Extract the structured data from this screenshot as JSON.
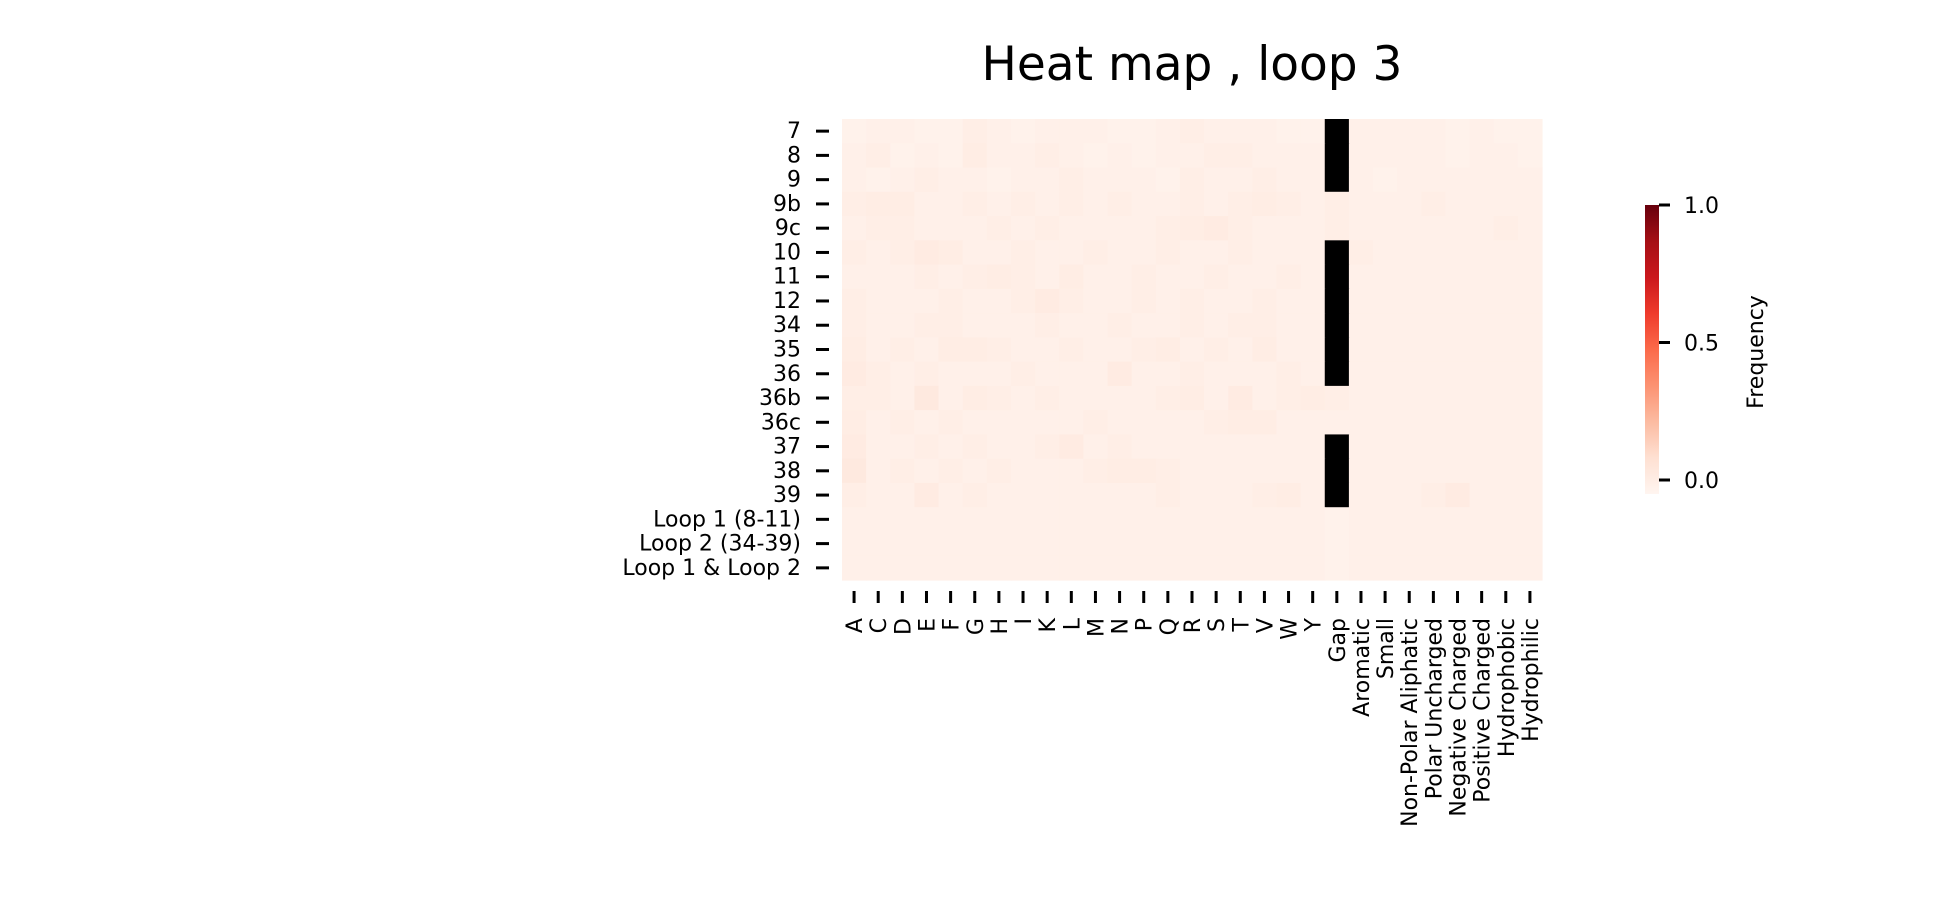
{
  "chart_data": {
    "type": "heatmap",
    "title": "Heat map , loop 3",
    "xlabel": "",
    "ylabel": "",
    "columns": [
      "A",
      "C",
      "D",
      "E",
      "F",
      "G",
      "H",
      "I",
      "K",
      "L",
      "M",
      "N",
      "P",
      "Q",
      "R",
      "S",
      "T",
      "V",
      "W",
      "Y",
      "Gap",
      "Aromatic",
      "Small",
      "Non-Polar Aliphatic",
      "Polar Uncharged",
      "Negative Charged",
      "Positive Charged",
      "Hydrophobic",
      "Hydrophilic"
    ],
    "rows": [
      "7",
      "8",
      "9",
      "9b",
      "9c",
      "10",
      "11",
      "12",
      "34",
      "35",
      "36",
      "36b",
      "36c",
      "37",
      "38",
      "39",
      "Loop 1 (8-11)",
      "Loop 2 (34-39)",
      "Loop 1 & Loop 2"
    ],
    "values": [
      [
        0.02,
        0.03,
        0.03,
        0.02,
        0.02,
        0.04,
        0.03,
        0.02,
        0.03,
        0.03,
        0.03,
        0.02,
        0.02,
        0.03,
        0.04,
        0.03,
        0.03,
        0.03,
        0.02,
        0.02,
        null,
        0.03,
        0.03,
        0.03,
        0.03,
        0.02,
        0.03,
        0.02,
        0.02
      ],
      [
        0.03,
        0.04,
        0.02,
        0.03,
        0.02,
        0.05,
        0.03,
        0.03,
        0.04,
        0.03,
        0.02,
        0.03,
        0.02,
        0.03,
        0.03,
        0.04,
        0.04,
        0.03,
        0.03,
        0.03,
        null,
        0.03,
        0.03,
        0.03,
        0.03,
        0.02,
        0.03,
        0.03,
        0.02
      ],
      [
        0.03,
        0.02,
        0.03,
        0.04,
        0.03,
        0.03,
        0.02,
        0.03,
        0.03,
        0.04,
        0.03,
        0.03,
        0.03,
        0.02,
        0.04,
        0.03,
        0.03,
        0.04,
        0.03,
        0.03,
        null,
        0.03,
        0.02,
        0.03,
        0.03,
        0.03,
        0.03,
        0.03,
        0.03
      ],
      [
        0.04,
        0.05,
        0.05,
        0.03,
        0.03,
        0.04,
        0.03,
        0.04,
        0.03,
        0.04,
        0.03,
        0.04,
        0.03,
        0.03,
        0.04,
        0.03,
        0.04,
        0.05,
        0.04,
        0.03,
        0.04,
        0.03,
        0.03,
        0.03,
        0.04,
        0.03,
        0.03,
        0.03,
        0.03
      ],
      [
        0.03,
        0.04,
        0.04,
        0.03,
        0.03,
        0.03,
        0.04,
        0.03,
        0.04,
        0.03,
        0.03,
        0.03,
        0.03,
        0.04,
        0.05,
        0.06,
        0.04,
        0.03,
        0.03,
        0.03,
        0.04,
        0.03,
        0.03,
        0.03,
        0.03,
        0.03,
        0.03,
        0.04,
        0.03
      ],
      [
        0.04,
        0.03,
        0.04,
        0.06,
        0.05,
        0.03,
        0.03,
        0.04,
        0.03,
        0.03,
        0.04,
        0.03,
        0.03,
        0.04,
        0.03,
        0.03,
        0.04,
        0.03,
        0.03,
        0.03,
        null,
        0.04,
        0.03,
        0.03,
        0.03,
        0.03,
        0.03,
        0.03,
        0.03
      ],
      [
        0.03,
        0.03,
        0.03,
        0.04,
        0.03,
        0.04,
        0.05,
        0.04,
        0.03,
        0.05,
        0.03,
        0.03,
        0.04,
        0.03,
        0.03,
        0.04,
        0.03,
        0.03,
        0.04,
        0.03,
        null,
        0.03,
        0.03,
        0.03,
        0.03,
        0.03,
        0.03,
        0.03,
        0.03
      ],
      [
        0.04,
        0.03,
        0.03,
        0.03,
        0.04,
        0.03,
        0.03,
        0.04,
        0.06,
        0.04,
        0.03,
        0.03,
        0.04,
        0.03,
        0.04,
        0.03,
        0.03,
        0.04,
        0.03,
        0.03,
        null,
        0.03,
        0.03,
        0.03,
        0.03,
        0.03,
        0.03,
        0.03,
        0.03
      ],
      [
        0.04,
        0.03,
        0.03,
        0.04,
        0.04,
        0.03,
        0.03,
        0.03,
        0.04,
        0.03,
        0.03,
        0.04,
        0.03,
        0.03,
        0.04,
        0.03,
        0.04,
        0.04,
        0.03,
        0.03,
        null,
        0.03,
        0.03,
        0.03,
        0.03,
        0.03,
        0.03,
        0.03,
        0.03
      ],
      [
        0.05,
        0.03,
        0.04,
        0.03,
        0.05,
        0.05,
        0.04,
        0.03,
        0.03,
        0.04,
        0.03,
        0.03,
        0.04,
        0.05,
        0.03,
        0.04,
        0.03,
        0.05,
        0.03,
        0.03,
        null,
        0.03,
        0.03,
        0.03,
        0.03,
        0.03,
        0.03,
        0.03,
        0.03
      ],
      [
        0.06,
        0.04,
        0.03,
        0.04,
        0.03,
        0.03,
        0.03,
        0.04,
        0.03,
        0.03,
        0.03,
        0.06,
        0.03,
        0.03,
        0.04,
        0.03,
        0.03,
        0.03,
        0.04,
        0.03,
        null,
        0.03,
        0.03,
        0.03,
        0.03,
        0.03,
        0.03,
        0.03,
        0.03
      ],
      [
        0.04,
        0.04,
        0.03,
        0.07,
        0.03,
        0.05,
        0.04,
        0.03,
        0.04,
        0.03,
        0.03,
        0.03,
        0.03,
        0.04,
        0.05,
        0.03,
        0.06,
        0.03,
        0.04,
        0.05,
        0.04,
        0.03,
        0.03,
        0.03,
        0.03,
        0.03,
        0.03,
        0.03,
        0.03
      ],
      [
        0.05,
        0.03,
        0.04,
        0.03,
        0.04,
        0.03,
        0.03,
        0.03,
        0.03,
        0.03,
        0.04,
        0.03,
        0.03,
        0.03,
        0.03,
        0.04,
        0.05,
        0.05,
        0.03,
        0.03,
        0.03,
        0.03,
        0.03,
        0.03,
        0.03,
        0.03,
        0.03,
        0.03,
        0.03
      ],
      [
        0.06,
        0.03,
        0.03,
        0.04,
        0.03,
        0.04,
        0.03,
        0.03,
        0.04,
        0.06,
        0.03,
        0.04,
        0.03,
        0.03,
        0.03,
        0.03,
        0.03,
        0.03,
        0.03,
        0.03,
        null,
        0.03,
        0.03,
        0.03,
        0.03,
        0.03,
        0.03,
        0.03,
        0.03
      ],
      [
        0.07,
        0.03,
        0.04,
        0.03,
        0.04,
        0.03,
        0.04,
        0.03,
        0.03,
        0.03,
        0.04,
        0.05,
        0.05,
        0.04,
        0.03,
        0.03,
        0.03,
        0.03,
        0.03,
        0.03,
        null,
        0.03,
        0.03,
        0.03,
        0.03,
        0.03,
        0.03,
        0.03,
        0.03
      ],
      [
        0.04,
        0.03,
        0.03,
        0.06,
        0.03,
        0.04,
        0.03,
        0.03,
        0.03,
        0.03,
        0.03,
        0.03,
        0.03,
        0.04,
        0.03,
        0.03,
        0.03,
        0.04,
        0.05,
        0.03,
        null,
        0.03,
        0.03,
        0.03,
        0.04,
        0.06,
        0.03,
        0.03,
        0.03
      ],
      [
        0.03,
        0.03,
        0.03,
        0.03,
        0.03,
        0.03,
        0.03,
        0.03,
        0.03,
        0.03,
        0.03,
        0.03,
        0.03,
        0.03,
        0.03,
        0.03,
        0.03,
        0.03,
        0.03,
        0.03,
        0.02,
        0.03,
        0.03,
        0.03,
        0.03,
        0.03,
        0.03,
        0.03,
        0.03
      ],
      [
        0.03,
        0.03,
        0.03,
        0.03,
        0.03,
        0.03,
        0.03,
        0.03,
        0.03,
        0.03,
        0.03,
        0.03,
        0.03,
        0.03,
        0.03,
        0.03,
        0.03,
        0.03,
        0.03,
        0.03,
        0.02,
        0.03,
        0.03,
        0.03,
        0.03,
        0.03,
        0.03,
        0.03,
        0.03
      ],
      [
        0.03,
        0.03,
        0.03,
        0.03,
        0.03,
        0.03,
        0.03,
        0.03,
        0.03,
        0.03,
        0.03,
        0.03,
        0.03,
        0.03,
        0.03,
        0.03,
        0.03,
        0.03,
        0.03,
        0.03,
        0.02,
        0.03,
        0.03,
        0.03,
        0.03,
        0.03,
        0.03,
        0.03,
        0.03
      ]
    ],
    "missing_color": "#000000",
    "colormap": "Reds",
    "vmin": 0.0,
    "vmax": 1.0,
    "colorbar": {
      "label": "Frequency",
      "ticks": [
        0.0,
        0.5,
        1.0
      ],
      "tick_labels": [
        "0.0",
        "0.5",
        "1.0"
      ]
    },
    "grid": false
  }
}
